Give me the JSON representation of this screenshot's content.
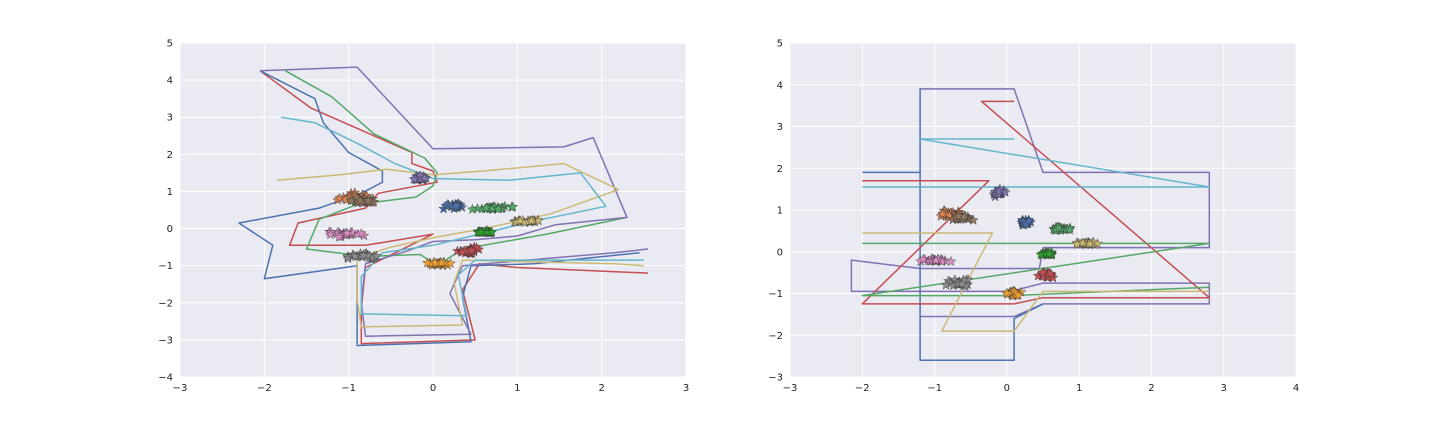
{
  "chart_data": [
    {
      "type": "line",
      "title": "",
      "xlabel": "",
      "ylabel": "",
      "xlim": [
        -3,
        3
      ],
      "ylim": [
        -4,
        5
      ],
      "xticks": [
        "−3",
        "−2",
        "−1",
        "0",
        "1",
        "2",
        "3"
      ],
      "yticks": [
        "−4",
        "−3",
        "−2",
        "−1",
        "0",
        "1",
        "2",
        "3",
        "4",
        "5"
      ],
      "grid": true,
      "series": [
        {
          "color": "#c44e52",
          "points": [
            [
              -2.05,
              4.25
            ],
            [
              -1.45,
              3.25
            ],
            [
              -0.25,
              2.05
            ],
            [
              -0.25,
              1.75
            ],
            [
              0.0,
              1.55
            ],
            [
              0.05,
              1.25
            ],
            [
              -0.65,
              0.95
            ],
            [
              -0.8,
              0.55
            ],
            [
              -1.6,
              0.15
            ],
            [
              -1.7,
              -0.45
            ],
            [
              -0.8,
              -0.45
            ],
            [
              0.0,
              -0.15
            ],
            [
              -0.8,
              -1.05
            ],
            [
              -0.85,
              -2.15
            ],
            [
              -0.85,
              -3.1
            ],
            [
              0.5,
              -3.0
            ],
            [
              0.35,
              -1.65
            ],
            [
              0.55,
              -0.95
            ],
            [
              1.0,
              -1.05
            ],
            [
              2.55,
              -1.2
            ]
          ]
        },
        {
          "color": "#4c72b0",
          "points": [
            [
              -2.05,
              4.25
            ],
            [
              -1.4,
              3.5
            ],
            [
              -1.3,
              2.85
            ],
            [
              -1.0,
              2.05
            ],
            [
              -0.6,
              1.55
            ],
            [
              -0.6,
              1.25
            ],
            [
              -0.85,
              0.95
            ],
            [
              -1.35,
              0.55
            ],
            [
              -2.3,
              0.15
            ],
            [
              -1.9,
              -0.45
            ],
            [
              -2.0,
              -1.35
            ],
            [
              -0.9,
              -1.0
            ],
            [
              -0.9,
              -2.1
            ],
            [
              -0.9,
              -3.15
            ],
            [
              0.45,
              -3.05
            ],
            [
              0.35,
              -1.85
            ],
            [
              0.45,
              -1.0
            ],
            [
              1.2,
              -0.95
            ],
            [
              2.45,
              -0.65
            ]
          ]
        },
        {
          "color": "#55a868",
          "points": [
            [
              -1.75,
              4.25
            ],
            [
              -1.2,
              3.55
            ],
            [
              -0.7,
              2.55
            ],
            [
              -0.1,
              1.9
            ],
            [
              0.05,
              1.5
            ],
            [
              0.0,
              1.15
            ],
            [
              -0.2,
              0.85
            ],
            [
              -0.9,
              0.65
            ],
            [
              -1.35,
              0.25
            ],
            [
              -1.5,
              -0.55
            ],
            [
              -0.8,
              -0.75
            ],
            [
              -0.15,
              -0.7
            ],
            [
              0.05,
              -1.0
            ],
            [
              0.35,
              -0.55
            ],
            [
              1.35,
              -0.15
            ],
            [
              2.3,
              0.3
            ]
          ]
        },
        {
          "color": "#8172b2",
          "points": [
            [
              -2.05,
              4.25
            ],
            [
              -0.9,
              4.35
            ],
            [
              -0.45,
              3.25
            ],
            [
              0.0,
              2.15
            ],
            [
              1.55,
              2.2
            ],
            [
              1.9,
              2.45
            ],
            [
              2.3,
              0.3
            ],
            [
              1.45,
              0.1
            ],
            [
              1.0,
              -0.2
            ],
            [
              0.5,
              -0.3
            ],
            [
              0.0,
              -0.35
            ],
            [
              -0.3,
              -0.6
            ],
            [
              -0.8,
              -0.95
            ],
            [
              -0.85,
              -2.0
            ],
            [
              -0.8,
              -2.9
            ],
            [
              0.45,
              -2.85
            ],
            [
              0.2,
              -1.75
            ],
            [
              0.35,
              -1.0
            ],
            [
              2.15,
              -0.65
            ],
            [
              2.55,
              -0.55
            ]
          ]
        },
        {
          "color": "#ccb974",
          "points": [
            [
              -1.85,
              1.3
            ],
            [
              -1.1,
              1.45
            ],
            [
              -0.55,
              1.6
            ],
            [
              0.0,
              1.45
            ],
            [
              0.6,
              1.55
            ],
            [
              1.55,
              1.75
            ],
            [
              2.2,
              1.05
            ],
            [
              1.4,
              0.4
            ],
            [
              0.6,
              0.0
            ],
            [
              0.0,
              -0.25
            ],
            [
              -0.5,
              -0.5
            ],
            [
              -0.9,
              -0.8
            ],
            [
              -0.9,
              -1.9
            ],
            [
              -0.85,
              -2.65
            ],
            [
              0.35,
              -2.6
            ],
            [
              0.25,
              -1.45
            ],
            [
              0.35,
              -0.85
            ],
            [
              2.15,
              -0.95
            ],
            [
              2.5,
              -1.0
            ]
          ]
        },
        {
          "color": "#64b5cd",
          "points": [
            [
              -1.8,
              3.0
            ],
            [
              -1.4,
              2.85
            ],
            [
              -0.9,
              2.3
            ],
            [
              -0.45,
              1.75
            ],
            [
              0.0,
              1.35
            ],
            [
              0.9,
              1.3
            ],
            [
              1.75,
              1.5
            ],
            [
              2.05,
              0.6
            ],
            [
              1.3,
              0.25
            ],
            [
              0.55,
              -0.15
            ],
            [
              0.0,
              -0.45
            ],
            [
              -0.6,
              -0.65
            ],
            [
              -0.85,
              -1.3
            ],
            [
              -0.85,
              -2.3
            ],
            [
              0.4,
              -2.35
            ],
            [
              0.3,
              -1.25
            ],
            [
              0.5,
              -0.85
            ],
            [
              2.0,
              -0.85
            ],
            [
              2.5,
              -0.85
            ]
          ]
        }
      ],
      "scatter_clusters": [
        {
          "color": "#55a868",
          "cx": 0.7,
          "cy": 0.55,
          "spread": [
            0.3,
            0.08
          ]
        },
        {
          "color": "#4c72b0",
          "cx": 0.25,
          "cy": 0.6,
          "spread": [
            0.15,
            0.08
          ]
        },
        {
          "color": "#ccb974",
          "cx": 1.1,
          "cy": 0.2,
          "spread": [
            0.25,
            0.05
          ]
        },
        {
          "color": "#8172b2",
          "cx": -0.15,
          "cy": 1.35,
          "spread": [
            0.1,
            0.12
          ]
        },
        {
          "color": "#dd8452",
          "cx": -0.95,
          "cy": 0.85,
          "spread": [
            0.3,
            0.15
          ]
        },
        {
          "color": "#937860",
          "cx": -0.8,
          "cy": 0.75,
          "spread": [
            0.2,
            0.1
          ]
        },
        {
          "color": "#da8bc3",
          "cx": -1.05,
          "cy": -0.15,
          "spread": [
            0.3,
            0.1
          ]
        },
        {
          "color": "#8c8c8c",
          "cx": -0.85,
          "cy": -0.75,
          "spread": [
            0.3,
            0.12
          ]
        },
        {
          "color": "#f0a030",
          "cx": 0.05,
          "cy": -0.95,
          "spread": [
            0.2,
            0.1
          ]
        },
        {
          "color": "#c44e52",
          "cx": 0.45,
          "cy": -0.6,
          "spread": [
            0.2,
            0.12
          ]
        },
        {
          "color": "#2ca02c",
          "cx": 0.6,
          "cy": -0.1,
          "spread": [
            0.15,
            0.06
          ]
        }
      ]
    },
    {
      "type": "line",
      "title": "",
      "xlabel": "",
      "ylabel": "",
      "xlim": [
        -3,
        4
      ],
      "ylim": [
        -3,
        5
      ],
      "xticks": [
        "−3",
        "−2",
        "−1",
        "0",
        "1",
        "2",
        "3",
        "4"
      ],
      "yticks": [
        "−3",
        "−2",
        "−1",
        "0",
        "1",
        "2",
        "3",
        "4",
        "5"
      ],
      "grid": true,
      "series": [
        {
          "color": "#8172b2",
          "points": [
            [
              -1.2,
              3.9
            ],
            [
              0.1,
              3.9
            ],
            [
              0.5,
              1.9
            ],
            [
              2.8,
              1.9
            ],
            [
              2.8,
              0.1
            ],
            [
              0.5,
              0.1
            ],
            [
              0.45,
              -0.4
            ],
            [
              -0.25,
              -0.4
            ],
            [
              -1.2,
              -0.4
            ],
            [
              -2.15,
              -0.2
            ],
            [
              -2.15,
              -0.95
            ],
            [
              -1.2,
              -0.95
            ],
            [
              0.05,
              -0.95
            ],
            [
              0.5,
              -0.75
            ],
            [
              2.8,
              -0.75
            ],
            [
              2.8,
              -1.25
            ],
            [
              0.5,
              -1.25
            ],
            [
              0.1,
              -1.55
            ],
            [
              -1.2,
              -1.55
            ]
          ]
        },
        {
          "color": "#4c72b0",
          "points": [
            [
              -2.0,
              1.9
            ],
            [
              -1.2,
              1.9
            ],
            [
              -1.2,
              3.9
            ],
            [
              -1.2,
              -2.6
            ],
            [
              0.1,
              -2.6
            ],
            [
              0.1,
              -1.6
            ],
            [
              0.5,
              -1.25
            ]
          ]
        },
        {
          "color": "#c44e52",
          "points": [
            [
              -2.0,
              1.7
            ],
            [
              -0.25,
              1.7
            ],
            [
              -2.0,
              -1.25
            ],
            [
              0.1,
              -1.25
            ],
            [
              0.5,
              -1.1
            ],
            [
              2.8,
              -1.1
            ],
            [
              -0.35,
              3.6
            ],
            [
              0.1,
              3.6
            ]
          ]
        },
        {
          "color": "#55a868",
          "points": [
            [
              -2.0,
              0.2
            ],
            [
              0.5,
              0.2
            ],
            [
              2.8,
              0.2
            ],
            [
              -2.0,
              -1.05
            ],
            [
              0.05,
              -1.05
            ],
            [
              2.8,
              -0.85
            ]
          ]
        },
        {
          "color": "#ccb974",
          "points": [
            [
              -2.0,
              0.45
            ],
            [
              -0.2,
              0.45
            ],
            [
              -0.9,
              -1.9
            ],
            [
              0.1,
              -1.9
            ],
            [
              0.5,
              -0.95
            ],
            [
              2.8,
              -0.95
            ]
          ]
        },
        {
          "color": "#64b5cd",
          "points": [
            [
              -2.0,
              1.55
            ],
            [
              -0.15,
              1.55
            ],
            [
              0.5,
              1.55
            ],
            [
              2.8,
              1.55
            ],
            [
              -1.2,
              2.7
            ],
            [
              0.1,
              2.7
            ]
          ]
        }
      ],
      "scatter_clusters": [
        {
          "color": "#4c72b0",
          "cx": 0.25,
          "cy": 0.7,
          "spread": [
            0.1,
            0.1
          ]
        },
        {
          "color": "#55a868",
          "cx": 0.75,
          "cy": 0.55,
          "spread": [
            0.2,
            0.06
          ]
        },
        {
          "color": "#ccb974",
          "cx": 1.1,
          "cy": 0.2,
          "spread": [
            0.2,
            0.05
          ]
        },
        {
          "color": "#8172b2",
          "cx": -0.1,
          "cy": 1.4,
          "spread": [
            0.12,
            0.12
          ]
        },
        {
          "color": "#dd8452",
          "cx": -0.8,
          "cy": 0.9,
          "spread": [
            0.25,
            0.12
          ]
        },
        {
          "color": "#937860",
          "cx": -0.6,
          "cy": 0.8,
          "spread": [
            0.2,
            0.1
          ]
        },
        {
          "color": "#da8bc3",
          "cx": -1.0,
          "cy": -0.2,
          "spread": [
            0.25,
            0.08
          ]
        },
        {
          "color": "#8c8c8c",
          "cx": -0.65,
          "cy": -0.75,
          "spread": [
            0.25,
            0.12
          ]
        },
        {
          "color": "#f0a030",
          "cx": 0.1,
          "cy": -1.0,
          "spread": [
            0.15,
            0.1
          ]
        },
        {
          "color": "#c44e52",
          "cx": 0.55,
          "cy": -0.55,
          "spread": [
            0.15,
            0.1
          ]
        },
        {
          "color": "#2ca02c",
          "cx": 0.55,
          "cy": -0.05,
          "spread": [
            0.12,
            0.05
          ]
        }
      ]
    }
  ]
}
